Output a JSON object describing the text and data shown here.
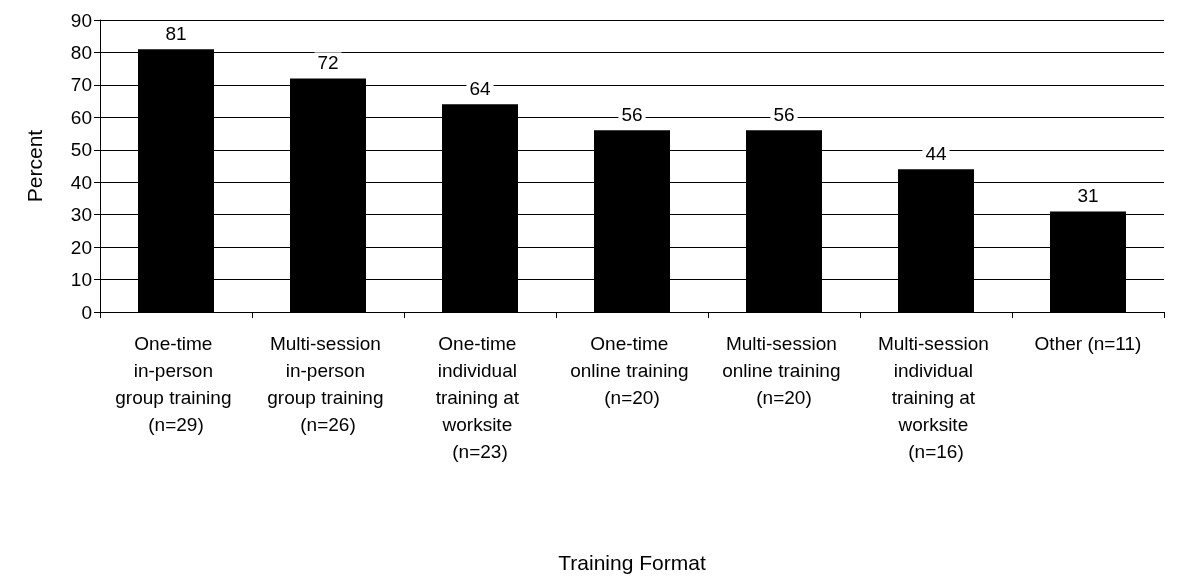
{
  "chart_data": {
    "type": "bar",
    "xlabel": "Training Format",
    "ylabel": "Percent",
    "categories": [
      "One-time in-person group training (n=29)",
      "Multi-session in-person group training (n=26)",
      "One-time individual training at worksite (n=23)",
      "One-time online training (n=20)",
      "Multi-session online training (n=20)",
      "Multi-session individual training at worksite (n=16)",
      "Other (n=11)"
    ],
    "values": [
      81,
      72,
      64,
      56,
      56,
      44,
      31
    ],
    "color": "#000000",
    "ylim": [
      0,
      90
    ],
    "yticks": [
      0,
      10,
      20,
      30,
      40,
      50,
      60,
      70,
      80,
      90
    ],
    "grid": "y",
    "data_labels": true
  }
}
